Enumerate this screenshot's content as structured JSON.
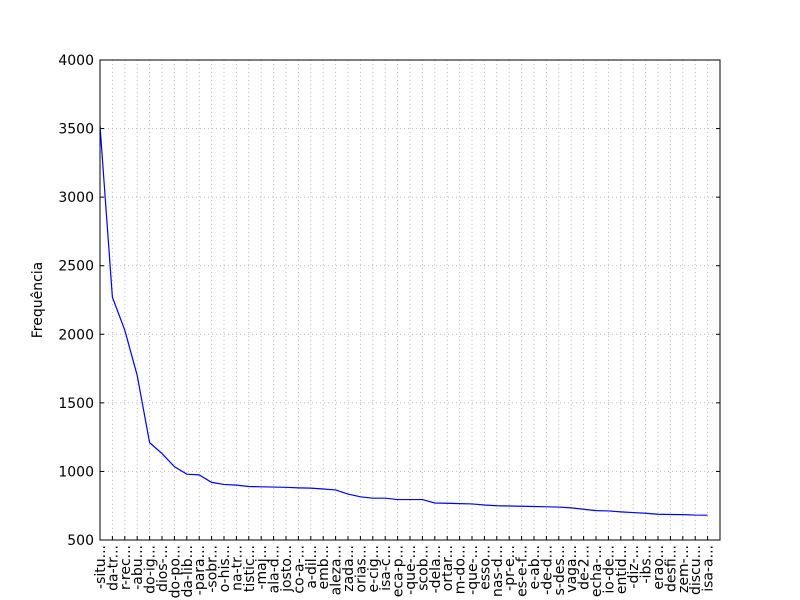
{
  "chart_data": {
    "type": "line",
    "y_label": "Frequência",
    "categories": [
      "-situ...",
      "da-tr...",
      "r-rec...",
      "-abu...",
      "do-ig...",
      "dios-...",
      "do-po...",
      "da-lib...",
      "-para...",
      "-sobr...",
      "o-his...",
      "na-tr...",
      "tistic...",
      "-maj...",
      "ala-d...",
      "josto...",
      "co-a-...",
      "a-dil...",
      "emb...",
      "aleza...",
      "zada...",
      "orias...",
      "e-cig...",
      "isa-c...",
      "eca-p...",
      "-que-...",
      "scob...",
      "-dela...",
      "ortar...",
      "m-do...",
      "-que-...",
      "esso...",
      "nas-d...",
      "-pr-e...",
      "es-e-f...",
      "e-ab...",
      "-de-d...",
      "s-des...",
      "vaga...",
      "de-2...",
      "echa-...",
      "io-de...",
      "entid...",
      "-diz-...",
      "-ibs...",
      "erao...",
      "desfi...",
      "zem-...",
      "discu...",
      "isa-a..."
    ],
    "series": [
      {
        "name": "Frequência",
        "color": "#0000ff",
        "values": [
          3520,
          2270,
          2030,
          1700,
          1210,
          1130,
          1035,
          980,
          975,
          920,
          905,
          900,
          890,
          888,
          886,
          884,
          880,
          878,
          872,
          865,
          835,
          815,
          805,
          805,
          795,
          795,
          795,
          770,
          768,
          765,
          763,
          755,
          750,
          748,
          746,
          744,
          742,
          740,
          734,
          724,
          714,
          712,
          705,
          700,
          695,
          688,
          686,
          685,
          682,
          681
        ]
      }
    ],
    "ylim": [
      500,
      4000
    ],
    "yticks": [
      500,
      1000,
      1500,
      2000,
      2500,
      3000,
      3500,
      4000
    ],
    "grid": true
  }
}
